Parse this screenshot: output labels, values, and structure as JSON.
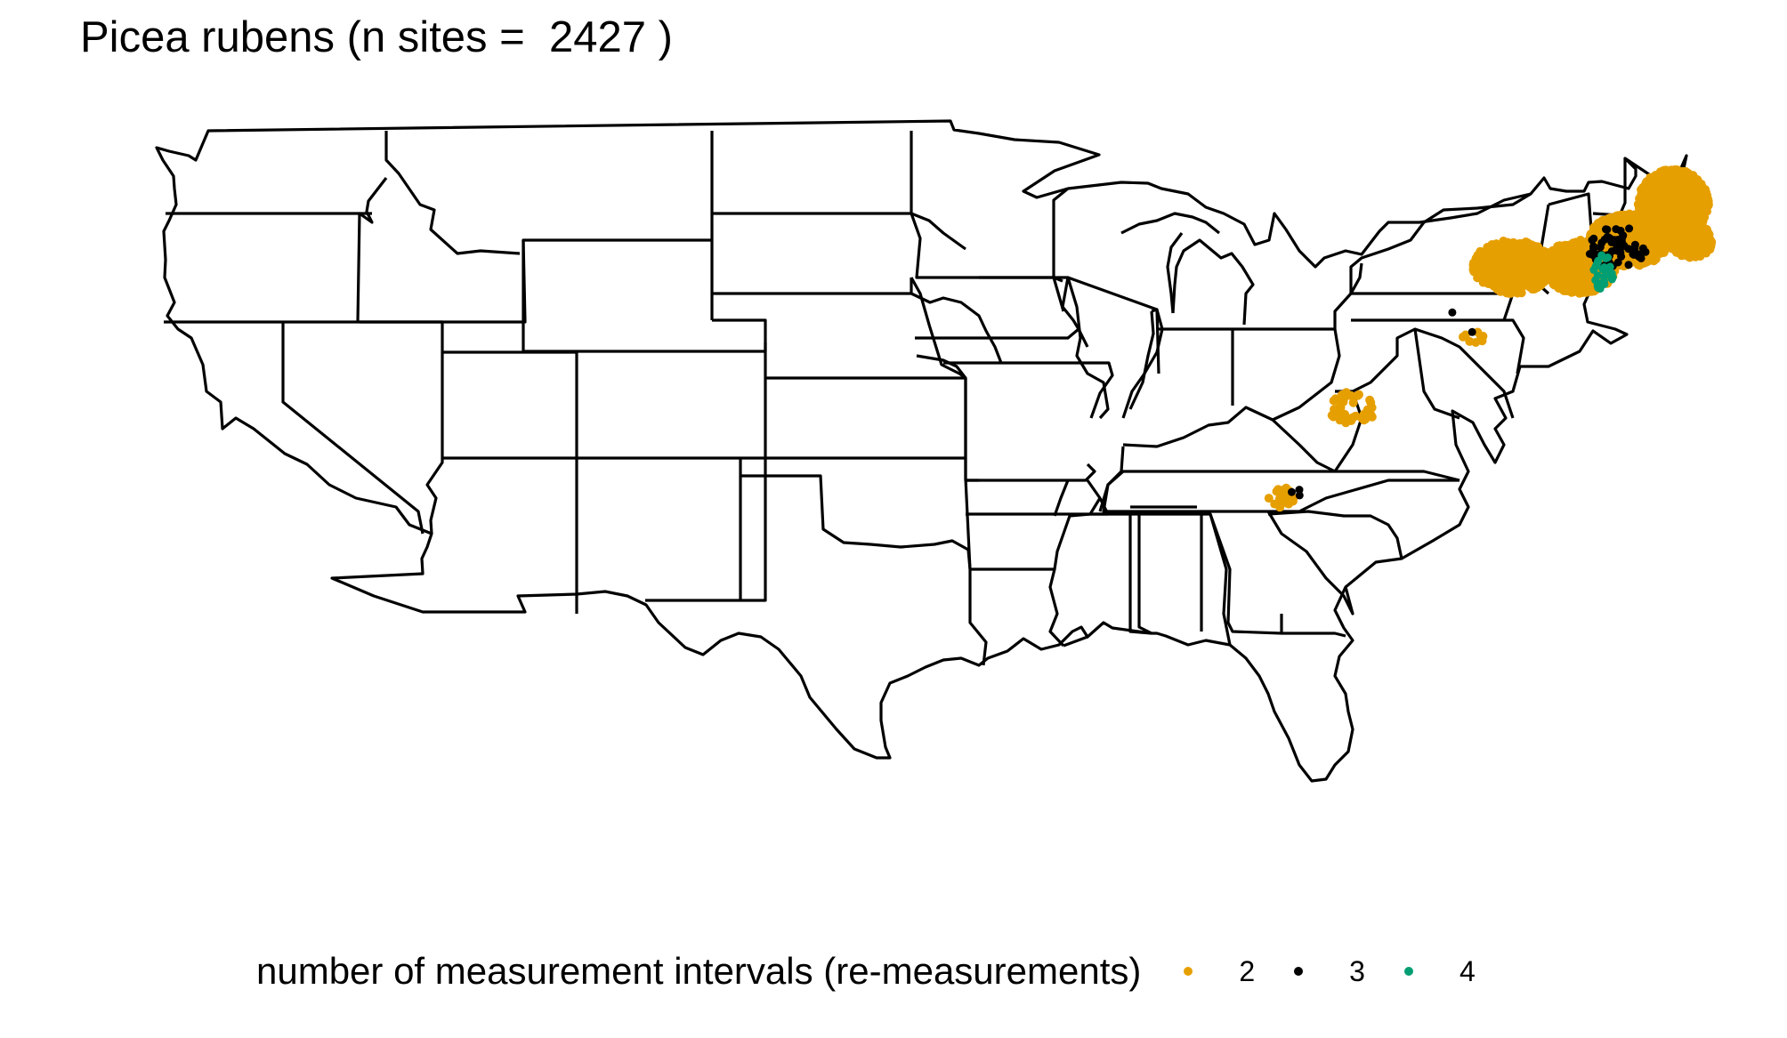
{
  "title": "Picea rubens (n sites =  2427 )",
  "legend": {
    "title": "number of measurement intervals (re-measurements)",
    "items": [
      {
        "label": "2",
        "color": "#E69F00"
      },
      {
        "label": "3",
        "color": "#000000"
      },
      {
        "label": "4",
        "color": "#009E73"
      }
    ]
  },
  "map": {
    "region": "contiguous United States, state boundaries",
    "outline_color": "#000000",
    "background": "#ffffff"
  },
  "point_clusters": [
    {
      "group": "2",
      "region": "Maine / New Hampshire / Vermont / northern New York"
    },
    {
      "group": "2",
      "region": "Pennsylvania"
    },
    {
      "group": "2",
      "region": "West Virginia highlands"
    },
    {
      "group": "2",
      "region": "southern Appalachians (Tennessee / North Carolina)"
    },
    {
      "group": "3",
      "region": "northern New England"
    },
    {
      "group": "3",
      "region": "Pennsylvania"
    },
    {
      "group": "3",
      "region": "southern Appalachians"
    },
    {
      "group": "4",
      "region": "Vermont / New Hampshire"
    }
  ]
}
